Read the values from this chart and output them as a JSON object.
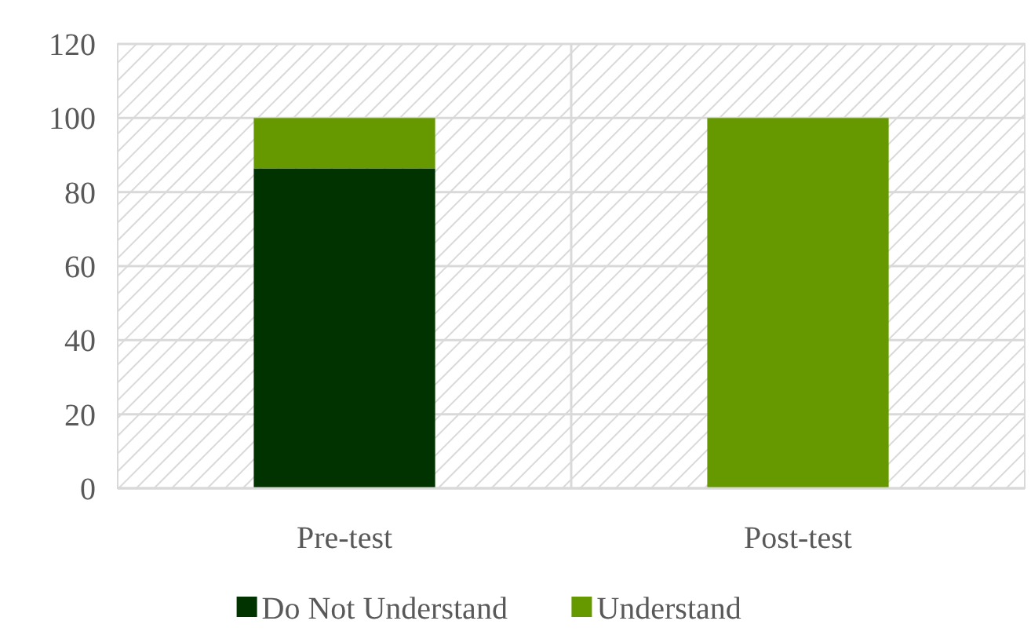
{
  "chart_data": {
    "type": "bar",
    "stacked": true,
    "categories": [
      "Pre-test",
      "Post-test"
    ],
    "series": [
      {
        "name": "Do Not Understand",
        "color": "#003300",
        "values": [
          86.4,
          0
        ]
      },
      {
        "name": "Understand",
        "color": "#669900",
        "values": [
          13.6,
          100
        ]
      }
    ],
    "ylim": [
      0,
      120
    ],
    "yticks": [
      0,
      20,
      40,
      60,
      80,
      100,
      120
    ],
    "grid": true,
    "legend": "bottom"
  }
}
